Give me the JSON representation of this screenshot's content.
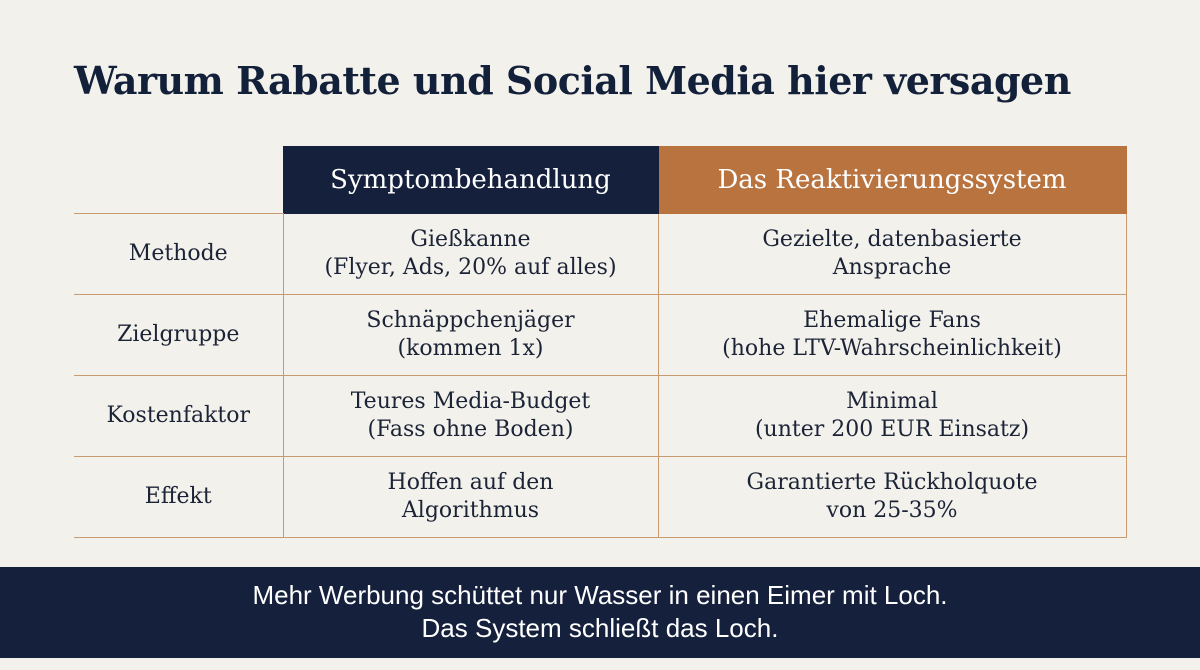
{
  "title": "Warum Rabatte und Social Media hier versagen",
  "table": {
    "columns": {
      "symptom": "Symptombehandlung",
      "system": "Das Reaktivierungssystem"
    },
    "rows": [
      {
        "label": "Methode",
        "symptom": [
          "Gießkanne",
          "(Flyer, Ads, 20% auf alles)"
        ],
        "system": [
          "Gezielte, datenbasierte",
          "Ansprache"
        ]
      },
      {
        "label": "Zielgruppe",
        "symptom": [
          "Schnäppchenjäger",
          "(kommen 1x)"
        ],
        "system": [
          "Ehemalige Fans",
          "(hohe LTV-Wahrscheinlichkeit)"
        ]
      },
      {
        "label": "Kostenfaktor",
        "symptom": [
          "Teures Media-Budget",
          "(Fass ohne Boden)"
        ],
        "system": [
          "Minimal",
          "(unter 200 EUR Einsatz)"
        ]
      },
      {
        "label": "Effekt",
        "symptom": [
          "Hoffen auf den",
          "Algorithmus"
        ],
        "system": [
          "Garantierte Rückholquote",
          "von 25-35%"
        ]
      }
    ]
  },
  "footer": {
    "line1": "Mehr Werbung schüttet nur Wasser in einen Eimer mit Loch.",
    "line2": "Das System schließt das Loch."
  },
  "colors": {
    "background": "#f3f1eb",
    "navy": "#14203c",
    "copper": "#b8733f",
    "grid": "#c79a70"
  }
}
